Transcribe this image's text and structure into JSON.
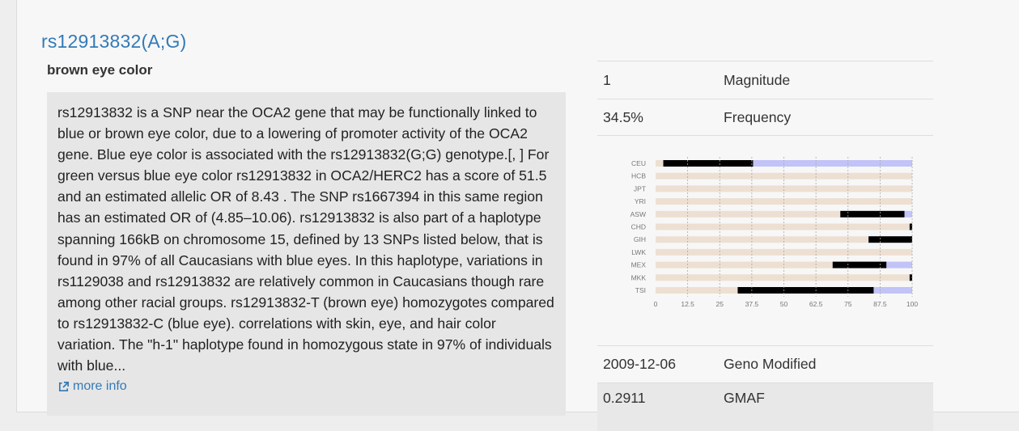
{
  "snp": {
    "title": "rs12913832(A;G)",
    "subtitle": "brown eye color"
  },
  "summary": {
    "text": "rs12913832 is a SNP near the OCA2 gene that may be functionally linked to blue or brown eye color, due to a lowering of promoter activity of the OCA2 gene. Blue eye color is associated with the rs12913832(G;G) genotype.[, ] For green versus blue eye color rs12913832 in OCA2/HERC2 has a score of 51.5 and an estimated allelic OR of 8.43 . The SNP rs1667394 in this same region has an estimated OR of (4.85–10.06). rs12913832 is also part of a haplotype spanning 166kB on chromosome 15, defined by 13 SNPs listed below, that is found in 97% of all Caucasians with blue eyes. In this haplotype, variations in rs1129038 and rs12913832 are relatively common in Caucasians though rare among other racial groups. rs12913832-T (brown eye) homozygotes compared to rs12913832-C (blue eye). correlations with skin, eye, and hair color variation. The \"h-1\" haplotype found in homozygous state in 97% of individuals with blue...",
    "more_info_label": "more info"
  },
  "info": {
    "magnitude": {
      "value": "1",
      "label": "Magnitude"
    },
    "frequency": {
      "value": "34.5%",
      "label": "Frequency"
    },
    "geno_modified": {
      "value": "2009-12-06",
      "label": "Geno Modified"
    },
    "gmaf": {
      "value": "0.2911",
      "label": "GMAF"
    }
  },
  "chart_data": {
    "type": "bar",
    "stacked": true,
    "orientation": "horizontal",
    "categories": [
      "CEU",
      "HCB",
      "JPT",
      "YRI",
      "ASW",
      "CHD",
      "GIH",
      "LWK",
      "MEX",
      "MKK",
      "TSI"
    ],
    "x_ticks": [
      "0",
      "12.5",
      "25",
      "37.5",
      "50",
      "62.5",
      "75",
      "87.5",
      "100"
    ],
    "xlim": [
      0,
      100
    ],
    "series": [
      {
        "color": "#ede0d2",
        "values": [
          3,
          100,
          100,
          100,
          72,
          99,
          83,
          100,
          69,
          99,
          32
        ]
      },
      {
        "color": "#000000",
        "values": [
          35,
          0,
          0,
          0,
          25,
          1,
          17,
          0,
          21,
          1,
          53
        ]
      },
      {
        "color": "#c2c3f7",
        "values": [
          62,
          0,
          0,
          0,
          3,
          0,
          0,
          0,
          10,
          0,
          15
        ]
      }
    ],
    "grid": true
  },
  "colors": {
    "link": "#337ab7",
    "summary_bg": "#e6e6e6",
    "grid": "#a8a8a8"
  },
  "icons": {
    "more_info": "external-link-icon"
  }
}
